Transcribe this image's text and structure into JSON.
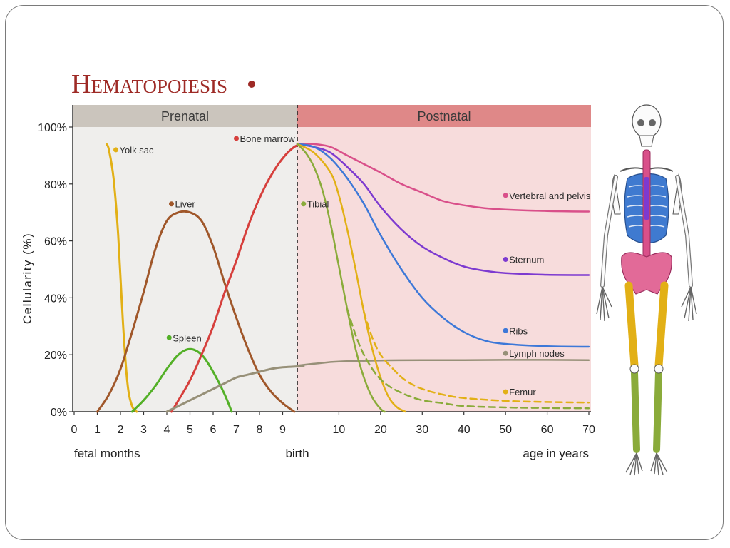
{
  "chart_data": {
    "type": "line",
    "title_initial": "H",
    "title_rest": "EMATOPOIESIS",
    "title": "HEMATOPOIESIS",
    "ylabel": "Cellularity (%)",
    "ylim": [
      0,
      100
    ],
    "grid": false,
    "periods": [
      {
        "name": "Prenatal",
        "color": "#cbc5bd",
        "bg": "#efeeec"
      },
      {
        "name": "Postnatal",
        "color": "#df8888",
        "bg": "#f7dcdc"
      }
    ],
    "y_ticks": [
      "0%",
      "20%",
      "40%",
      "60%",
      "80%",
      "100%"
    ],
    "x_ticks_prenatal": [
      "0",
      "1",
      "2",
      "3",
      "4",
      "5",
      "6",
      "7",
      "8",
      "9"
    ],
    "x_ticks_postnatal": [
      "10",
      "20",
      "30",
      "40",
      "50",
      "60",
      "70"
    ],
    "x_axis_labels": {
      "left": "fetal months",
      "center": "birth",
      "right": "age in years"
    },
    "prenatal_series": [
      {
        "name": "Yolk sac",
        "color": "#e2b016",
        "points": [
          [
            1.4,
            94
          ],
          [
            1.5,
            92
          ],
          [
            1.7,
            82
          ],
          [
            1.9,
            62
          ],
          [
            2.1,
            32
          ],
          [
            2.3,
            10
          ],
          [
            2.5,
            2
          ],
          [
            2.7,
            0
          ]
        ]
      },
      {
        "name": "Liver",
        "color": "#a0572a",
        "points": [
          [
            1,
            0
          ],
          [
            1.5,
            6
          ],
          [
            2,
            15
          ],
          [
            2.5,
            28
          ],
          [
            3,
            42
          ],
          [
            3.5,
            57
          ],
          [
            4,
            67
          ],
          [
            4.5,
            70
          ],
          [
            5,
            70
          ],
          [
            5.5,
            67
          ],
          [
            6,
            58
          ],
          [
            6.5,
            45
          ],
          [
            7,
            33
          ],
          [
            7.5,
            22
          ],
          [
            8,
            13
          ],
          [
            8.5,
            7
          ],
          [
            9,
            3
          ],
          [
            9.5,
            0
          ]
        ]
      },
      {
        "name": "Spleen",
        "color": "#53b027",
        "points": [
          [
            2.5,
            0
          ],
          [
            3,
            4
          ],
          [
            3.5,
            9
          ],
          [
            4,
            15
          ],
          [
            4.5,
            20
          ],
          [
            5,
            22
          ],
          [
            5.5,
            20
          ],
          [
            6,
            14
          ],
          [
            6.5,
            6
          ],
          [
            6.8,
            0
          ]
        ]
      },
      {
        "name": "Bone marrow",
        "color": "#d63f3c",
        "points": [
          [
            4.2,
            0
          ],
          [
            4.5,
            4
          ],
          [
            5,
            11
          ],
          [
            5.5,
            20
          ],
          [
            6,
            30
          ],
          [
            6.5,
            42
          ],
          [
            7,
            53
          ],
          [
            7.5,
            65
          ],
          [
            8,
            75
          ],
          [
            8.5,
            83
          ],
          [
            9,
            89
          ],
          [
            9.5,
            93
          ],
          [
            9.9,
            94
          ]
        ]
      },
      {
        "name": "Lymph nodes",
        "color": "#979078",
        "points": [
          [
            4,
            0
          ],
          [
            4.5,
            2
          ],
          [
            5,
            4
          ],
          [
            5.5,
            6
          ],
          [
            6,
            8
          ],
          [
            6.5,
            10
          ],
          [
            7,
            12
          ],
          [
            7.5,
            13
          ],
          [
            8,
            14
          ],
          [
            8.5,
            15
          ],
          [
            9,
            15.6
          ],
          [
            9.9,
            16
          ]
        ]
      }
    ],
    "postnatal_series": [
      {
        "name": "Vertebral and pelvis",
        "color": "#d9508a",
        "points": [
          [
            0,
            94
          ],
          [
            4,
            94
          ],
          [
            8,
            93
          ],
          [
            12,
            90
          ],
          [
            16,
            87
          ],
          [
            20,
            84
          ],
          [
            25,
            80
          ],
          [
            30,
            77
          ],
          [
            35,
            74
          ],
          [
            40,
            72.5
          ],
          [
            45,
            71.5
          ],
          [
            50,
            71
          ],
          [
            60,
            70.5
          ],
          [
            70,
            70.3
          ]
        ]
      },
      {
        "name": "Sternum",
        "color": "#7d3ad0",
        "points": [
          [
            0,
            94
          ],
          [
            4,
            93
          ],
          [
            8,
            91
          ],
          [
            12,
            86
          ],
          [
            16,
            80
          ],
          [
            20,
            72
          ],
          [
            25,
            64
          ],
          [
            30,
            58
          ],
          [
            35,
            54
          ],
          [
            40,
            51
          ],
          [
            45,
            49.5
          ],
          [
            50,
            48.7
          ],
          [
            60,
            48.1
          ],
          [
            70,
            48
          ]
        ]
      },
      {
        "name": "Ribs",
        "color": "#3d78d8",
        "points": [
          [
            0,
            94
          ],
          [
            4,
            93
          ],
          [
            8,
            89
          ],
          [
            12,
            82
          ],
          [
            16,
            73
          ],
          [
            20,
            62
          ],
          [
            25,
            50
          ],
          [
            30,
            40
          ],
          [
            35,
            33
          ],
          [
            40,
            28
          ],
          [
            45,
            25
          ],
          [
            50,
            23.8
          ],
          [
            60,
            23
          ],
          [
            70,
            22.8
          ]
        ]
      },
      {
        "name": "Lymph nodes",
        "color": "#979078",
        "points": [
          [
            0,
            16.2
          ],
          [
            5,
            17
          ],
          [
            10,
            17.6
          ],
          [
            20,
            18
          ],
          [
            30,
            18.1
          ],
          [
            40,
            18.1
          ],
          [
            50,
            18.2
          ],
          [
            60,
            18.2
          ],
          [
            70,
            18.1
          ]
        ]
      },
      {
        "name": "Femur",
        "color": "#e2b016",
        "points": [
          [
            0,
            94
          ],
          [
            4,
            91
          ],
          [
            8,
            84
          ],
          [
            10,
            76
          ],
          [
            12,
            64
          ],
          [
            14,
            50
          ],
          [
            16,
            35
          ],
          [
            18,
            22
          ],
          [
            20,
            12
          ],
          [
            22,
            5
          ],
          [
            24,
            1.5
          ],
          [
            26,
            0
          ]
        ]
      },
      {
        "name": "Femur (dashed)",
        "color": "#e2b016",
        "dashed": true,
        "points": [
          [
            16,
            35
          ],
          [
            18,
            26
          ],
          [
            20,
            20
          ],
          [
            23,
            15
          ],
          [
            26,
            11
          ],
          [
            30,
            8
          ],
          [
            35,
            6
          ],
          [
            40,
            4.8
          ],
          [
            50,
            3.8
          ],
          [
            60,
            3.4
          ],
          [
            70,
            3.2
          ]
        ]
      },
      {
        "name": "Tibial",
        "color": "#8aab3a",
        "points": [
          [
            0,
            94
          ],
          [
            2,
            91
          ],
          [
            4,
            86
          ],
          [
            6,
            78
          ],
          [
            8,
            66
          ],
          [
            10,
            51
          ],
          [
            12,
            36
          ],
          [
            14,
            22
          ],
          [
            16,
            12
          ],
          [
            18,
            5
          ],
          [
            20,
            1
          ],
          [
            21,
            0
          ]
        ]
      },
      {
        "name": "Tibial (dashed)",
        "color": "#8aab3a",
        "dashed": true,
        "points": [
          [
            12,
            36
          ],
          [
            14,
            27
          ],
          [
            16,
            20
          ],
          [
            19,
            13
          ],
          [
            22,
            9
          ],
          [
            26,
            6
          ],
          [
            30,
            4
          ],
          [
            35,
            3
          ],
          [
            40,
            2
          ],
          [
            50,
            1.5
          ],
          [
            60,
            1.3
          ],
          [
            70,
            1.2
          ]
        ]
      }
    ],
    "labels": [
      {
        "text": "Yolk sac",
        "period": "pre",
        "x": 1.8,
        "y": 92,
        "color": "#e2b016"
      },
      {
        "text": "Liver",
        "period": "pre",
        "x": 4.2,
        "y": 73,
        "color": "#a0572a"
      },
      {
        "text": "Spleen",
        "period": "pre",
        "x": 4.1,
        "y": 26,
        "color": "#53b027"
      },
      {
        "text": "Bone marrow",
        "period": "pre",
        "x": 7.0,
        "y": 96,
        "color": "#d63f3c"
      },
      {
        "text": "Tibial",
        "period": "post",
        "x": 1.5,
        "y": 73,
        "color": "#8aab3a"
      },
      {
        "text": "Vertebral and pelvis",
        "period": "post",
        "x": 50,
        "y": 76,
        "color": "#d9508a"
      },
      {
        "text": "Sternum",
        "period": "post",
        "x": 50,
        "y": 53.5,
        "color": "#7d3ad0"
      },
      {
        "text": "Ribs",
        "period": "post",
        "x": 50,
        "y": 28.5,
        "color": "#3d78d8"
      },
      {
        "text": "Lymph nodes",
        "period": "post",
        "x": 50,
        "y": 20.5,
        "color": "#979078"
      },
      {
        "text": "Femur",
        "period": "post",
        "x": 50,
        "y": 7,
        "color": "#e2b016"
      }
    ],
    "accent_color": "#9e2a26"
  }
}
